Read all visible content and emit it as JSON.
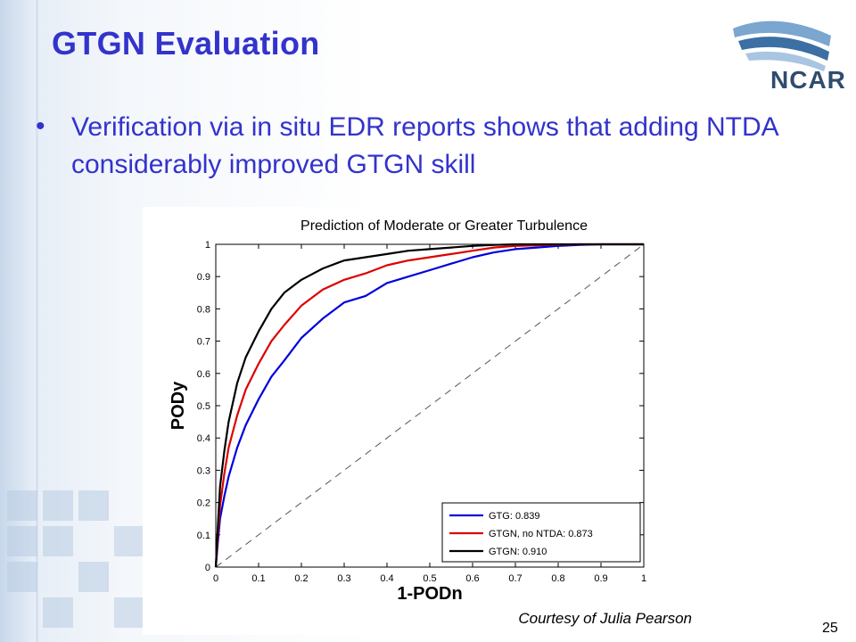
{
  "slide": {
    "title": "GTGN Evaluation",
    "bullet_marker": "•",
    "bullet": "Verification via in situ EDR reports shows that adding NTDA considerably improved GTGN skill",
    "logo": "NCAR",
    "courtesy": "Courtesy of Julia Pearson",
    "page_number": "25",
    "colors": {
      "title": "#3333cc",
      "text": "#3333cc",
      "logo": "#2f4c6e"
    }
  },
  "chart_data": {
    "type": "line",
    "title": "Prediction of Moderate or Greater Turbulence",
    "xlabel": "1-PODn",
    "ylabel": "PODy",
    "xlim": [
      0,
      1
    ],
    "ylim": [
      0,
      1
    ],
    "x_ticks": [
      "0",
      "0.1",
      "0.2",
      "0.3",
      "0.4",
      "0.5",
      "0.6",
      "0.7",
      "0.8",
      "0.9",
      "1"
    ],
    "y_ticks": [
      "0",
      "0.1",
      "0.2",
      "0.3",
      "0.4",
      "0.5",
      "0.6",
      "0.7",
      "0.8",
      "0.9",
      "1"
    ],
    "grid": false,
    "legend_position": "bottom-right",
    "reference_line": {
      "style": "dashed",
      "color": "#555555",
      "x": [
        0,
        1
      ],
      "y": [
        0,
        1
      ]
    },
    "series": [
      {
        "name": "GTG: 0.839",
        "color": "#0000dd",
        "x": [
          0,
          0.005,
          0.01,
          0.02,
          0.03,
          0.05,
          0.07,
          0.1,
          0.13,
          0.16,
          0.2,
          0.25,
          0.3,
          0.35,
          0.4,
          0.45,
          0.5,
          0.55,
          0.6,
          0.65,
          0.7,
          0.75,
          0.8,
          0.85,
          0.9,
          0.95,
          1.0
        ],
        "y": [
          0,
          0.08,
          0.15,
          0.22,
          0.28,
          0.37,
          0.44,
          0.52,
          0.59,
          0.64,
          0.71,
          0.77,
          0.82,
          0.84,
          0.88,
          0.9,
          0.92,
          0.94,
          0.96,
          0.975,
          0.985,
          0.99,
          0.995,
          0.998,
          1.0,
          1.0,
          1.0
        ]
      },
      {
        "name": "GTGN, no NTDA: 0.873",
        "color": "#dd0000",
        "x": [
          0,
          0.005,
          0.01,
          0.02,
          0.03,
          0.05,
          0.07,
          0.1,
          0.13,
          0.16,
          0.2,
          0.25,
          0.3,
          0.35,
          0.4,
          0.45,
          0.5,
          0.55,
          0.6,
          0.65,
          0.7,
          0.75,
          0.8,
          0.85,
          0.9,
          0.95,
          1.0
        ],
        "y": [
          0,
          0.1,
          0.19,
          0.29,
          0.37,
          0.47,
          0.55,
          0.63,
          0.7,
          0.75,
          0.81,
          0.86,
          0.89,
          0.91,
          0.935,
          0.95,
          0.96,
          0.97,
          0.98,
          0.99,
          0.995,
          0.997,
          0.999,
          1.0,
          1.0,
          1.0,
          1.0
        ]
      },
      {
        "name": "GTGN: 0.910",
        "color": "#000000",
        "x": [
          0,
          0.005,
          0.01,
          0.02,
          0.03,
          0.05,
          0.07,
          0.1,
          0.13,
          0.16,
          0.2,
          0.25,
          0.3,
          0.35,
          0.4,
          0.45,
          0.5,
          0.55,
          0.6,
          0.65,
          0.7,
          0.75,
          0.8,
          0.85,
          0.9,
          0.95,
          1.0
        ],
        "y": [
          0,
          0.13,
          0.25,
          0.36,
          0.45,
          0.57,
          0.65,
          0.73,
          0.8,
          0.85,
          0.89,
          0.925,
          0.95,
          0.96,
          0.97,
          0.98,
          0.985,
          0.99,
          0.995,
          0.998,
          1.0,
          1.0,
          1.0,
          1.0,
          1.0,
          1.0,
          1.0
        ]
      }
    ]
  }
}
